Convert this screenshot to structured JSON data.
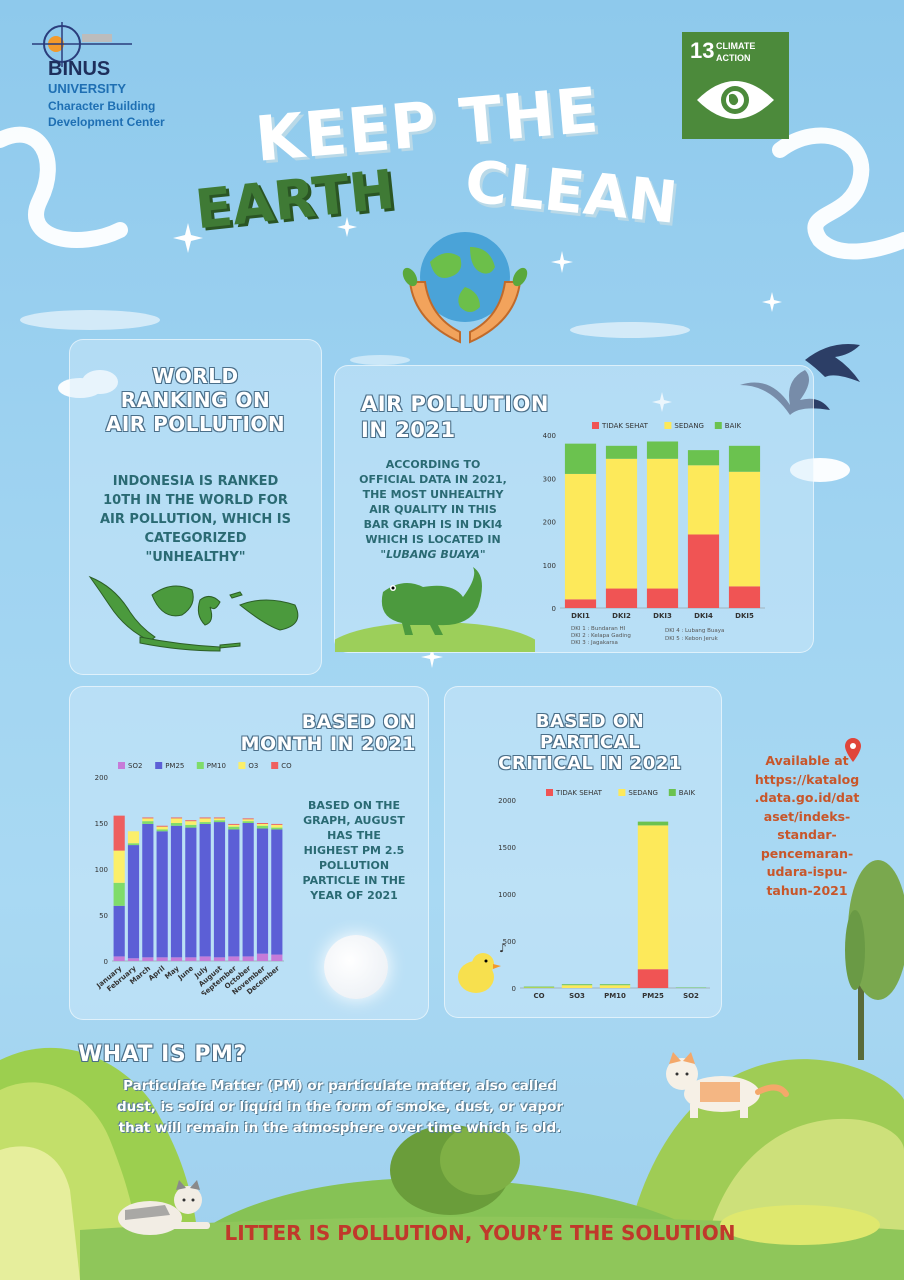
{
  "header": {
    "brand": "BINUS",
    "university": "UNIVERSITY",
    "center_line1": "Character Building",
    "center_line2": "Development Center",
    "title_line1": "KEEP THE",
    "title_line2a": "EARTH",
    "title_line2b": "CLEAN",
    "sdg_number": "13",
    "sdg_label1": "CLIMATE",
    "sdg_label2": "ACTION",
    "colors": {
      "sdg_green": "#4c8a3b",
      "title_green": "#3f7a35"
    }
  },
  "world_ranking": {
    "title_line1": "WORLD",
    "title_line2": "RANKING ON",
    "title_line3": "AIR POLLUTION",
    "body_line1": "INDONESIA IS RANKED",
    "body_line2": "10TH IN THE WORLD FOR",
    "body_line3": "AIR POLLUTION, WHICH IS",
    "body_line4": "CATEGORIZED",
    "body_line5": "\"UNHEALTHY\""
  },
  "air_pollution": {
    "title_line1": "AIR POLLUTION",
    "title_line2": "IN 2021",
    "body_line1": "ACCORDING TO",
    "body_line2": "OFFICIAL DATA IN 2021,",
    "body_line3": "THE MOST UNHEALTHY",
    "body_line4": "AIR QUALITY IN THIS",
    "body_line5": "BAR GRAPH IS IN DKI4",
    "body_line6": "WHICH IS LOCATED IN",
    "body_line7": "\"LUBANG BUAYA\"",
    "notes": [
      "DKI 1 : Bundaran HI",
      "DKI 2 : Kelapa Gading",
      "DKI 3 : Jagakarsa",
      "DKI 4 : Lubang Buaya",
      "DKI 5 : Kebon Jeruk"
    ]
  },
  "month_section": {
    "title_line1": "BASED ON",
    "title_line2": "MONTH IN 2021",
    "body_line1": "BASED ON THE",
    "body_line2": "GRAPH, AUGUST",
    "body_line3": "HAS THE",
    "body_line4": "HIGHEST PM 2.5",
    "body_line5": "POLLUTION",
    "body_line6": "PARTICLE IN THE",
    "body_line7": "YEAR OF 2021"
  },
  "partical_section": {
    "title_line1": "BASED ON",
    "title_line2": "PARTICAL",
    "title_line3": "CRITICAL IN 2021"
  },
  "available": {
    "lines": [
      "Available at",
      "https://katalog",
      ".data.go.id/dat",
      "aset/indeks-",
      "standar-",
      "pencemaran-",
      "udara-ispu-",
      "tahun-2021"
    ],
    "color": "#c8562a"
  },
  "what_is_pm": {
    "title": "WHAT IS PM?",
    "line1": "Particulate Matter (PM) or particulate matter, also called",
    "line2": "dust, is solid or liquid in the form of smoke, dust, or vapor",
    "line3": "that will remain in the atmosphere over time which is old."
  },
  "footer": {
    "slogan": "LITTER IS POLLUTION, YOUR’E THE SOLUTION",
    "color": "#c0392b"
  },
  "chart_data": [
    {
      "type": "bar",
      "stacked": true,
      "categories": [
        "DKI1",
        "DKI2",
        "DKI3",
        "DKI4",
        "DKI5"
      ],
      "series": [
        {
          "name": "TIDAK SEHAT",
          "color": "#f05454",
          "values": [
            20,
            45,
            45,
            170,
            50
          ]
        },
        {
          "name": "SEDANG",
          "color": "#fde95a",
          "values": [
            290,
            300,
            300,
            160,
            265
          ]
        },
        {
          "name": "BAIK",
          "color": "#6bc24f",
          "values": [
            70,
            30,
            40,
            35,
            60
          ]
        }
      ],
      "ylim": [
        0,
        400
      ],
      "yticks": [
        0,
        100,
        200,
        300,
        400
      ],
      "legend": "top"
    },
    {
      "type": "bar",
      "stacked": true,
      "categories": [
        "January",
        "February",
        "March",
        "April",
        "May",
        "June",
        "July",
        "August",
        "September",
        "October",
        "November",
        "December"
      ],
      "series": [
        {
          "name": "SO2",
          "color": "#c67bd8",
          "values": [
            5,
            3,
            4,
            4,
            4,
            4,
            5,
            4,
            5,
            5,
            8,
            7
          ]
        },
        {
          "name": "PM25",
          "color": "#5c5fd6",
          "values": [
            55,
            123,
            145,
            137,
            143,
            141,
            144,
            147,
            138,
            145,
            136,
            136
          ]
        },
        {
          "name": "PM10",
          "color": "#7fdc6a",
          "values": [
            25,
            2,
            3,
            2,
            3,
            3,
            2,
            2,
            3,
            2,
            3,
            2
          ]
        },
        {
          "name": "O3",
          "color": "#fbef6a",
          "values": [
            35,
            13,
            3,
            3,
            5,
            4,
            4,
            2,
            2,
            2,
            2,
            3
          ]
        },
        {
          "name": "CO",
          "color": "#ee5f5f",
          "values": [
            38,
            0,
            1,
            1,
            1,
            1,
            1,
            1,
            1,
            1,
            1,
            1
          ]
        }
      ],
      "ylim": [
        0,
        200
      ],
      "yticks": [
        0,
        50,
        100,
        150,
        200
      ],
      "legend": "top"
    },
    {
      "type": "bar",
      "stacked": true,
      "categories": [
        "CO",
        "SO3",
        "PM10",
        "PM25",
        "SO2"
      ],
      "series": [
        {
          "name": "TIDAK SEHAT",
          "color": "#f05454",
          "values": [
            0,
            0,
            0,
            200,
            0
          ]
        },
        {
          "name": "SEDANG",
          "color": "#fde95a",
          "values": [
            5,
            30,
            30,
            1530,
            0
          ]
        },
        {
          "name": "BAIK",
          "color": "#6bc24f",
          "values": [
            10,
            10,
            10,
            40,
            5
          ]
        }
      ],
      "ylim": [
        0,
        2000
      ],
      "yticks": [
        0,
        500,
        1000,
        1500,
        2000
      ],
      "legend": "top"
    }
  ]
}
